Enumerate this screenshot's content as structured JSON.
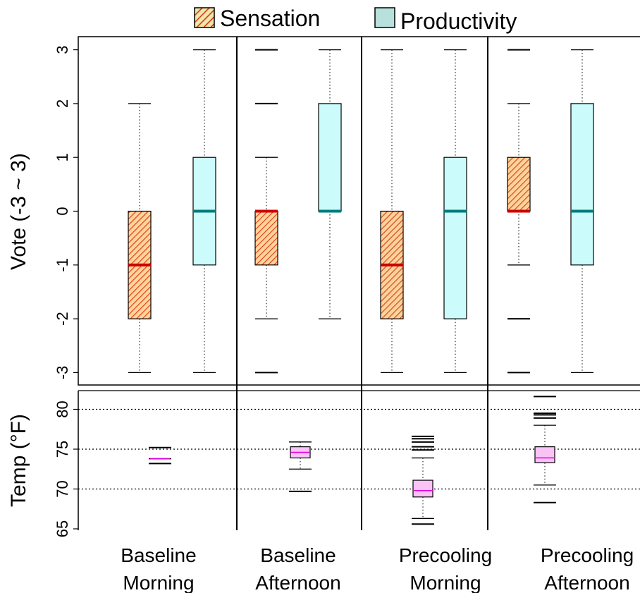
{
  "legend": {
    "items": [
      {
        "label": "Sensation",
        "style": "hatch",
        "fill": "#f0e7ad",
        "stroke": "#d63a16"
      },
      {
        "label": "Productivity",
        "style": "solid",
        "fill": "#b8e0dc",
        "stroke": "#000000"
      }
    ]
  },
  "colors": {
    "sensation_fill": "#ffd39a",
    "sensation_hatch": "#d63a16",
    "sensation_median": "#cc0000",
    "productivity_fill": "#ccfbfb",
    "productivity_median": "#007b7b",
    "temp_fill": "#f9c3f6",
    "temp_median": "#e000e0"
  },
  "chart_data": [
    {
      "type": "box",
      "ylabel": "Vote (-3 ~ 3)",
      "ylim": [
        -3.2,
        3.3
      ],
      "yticks": [
        "-3",
        "-2",
        "-1",
        "0",
        "1",
        "2",
        "3"
      ],
      "categories": [
        "Baseline Morning",
        "Baseline Afternoon",
        "Precooling Morning",
        "Precooling Afternoon"
      ],
      "category_labels": [
        {
          "line1": "Baseline",
          "line2": "Morning"
        },
        {
          "line1": "Baseline",
          "line2": "Afternoon"
        },
        {
          "line1": "Precooling",
          "line2": "Morning"
        },
        {
          "line1": "Precooling",
          "line2": "Afternoon"
        }
      ],
      "series": [
        {
          "name": "Sensation",
          "boxes": [
            {
              "whisker_low": -3,
              "q1": -2,
              "median": -1,
              "q3": 0,
              "whisker_high": 2,
              "outliers": []
            },
            {
              "whisker_low": -2,
              "q1": -1,
              "median": 0,
              "q3": 0,
              "whisker_high": 1,
              "outliers": [
                -3,
                2,
                3
              ]
            },
            {
              "whisker_low": -3,
              "q1": -2,
              "median": -1,
              "q3": 0,
              "whisker_high": 3,
              "outliers": []
            },
            {
              "whisker_low": -1,
              "q1": 0,
              "median": 0,
              "q3": 1,
              "whisker_high": 2,
              "outliers": [
                -3,
                -2,
                3
              ]
            }
          ]
        },
        {
          "name": "Productivity",
          "boxes": [
            {
              "whisker_low": -3,
              "q1": -1,
              "median": 0,
              "q3": 1,
              "whisker_high": 3,
              "outliers": []
            },
            {
              "whisker_low": -2,
              "q1": 0,
              "median": 0,
              "q3": 2,
              "whisker_high": 3,
              "outliers": []
            },
            {
              "whisker_low": -3,
              "q1": -2,
              "median": 0,
              "q3": 1,
              "whisker_high": 3,
              "outliers": []
            },
            {
              "whisker_low": -3,
              "q1": -1,
              "median": 0,
              "q3": 2,
              "whisker_high": 3,
              "outliers": []
            }
          ]
        }
      ]
    },
    {
      "type": "box",
      "ylabel": "Temp (°F)",
      "ylim": [
        64.8,
        82.5
      ],
      "yticks": [
        "65",
        "70",
        "75",
        "80"
      ],
      "gridlines": [
        70,
        75,
        80
      ],
      "categories": [
        "Baseline Morning",
        "Baseline Afternoon",
        "Precooling Morning",
        "Precooling Afternoon"
      ],
      "series": [
        {
          "name": "Temp",
          "boxes": [
            {
              "whisker_low": 73.8,
              "q1": 73.8,
              "median": 73.8,
              "q3": 73.8,
              "whisker_high": 73.8,
              "outliers": [
                73.2,
                75.2
              ]
            },
            {
              "whisker_low": 72.5,
              "q1": 73.9,
              "median": 74.6,
              "q3": 75.3,
              "whisker_high": 75.9,
              "outliers": [
                69.7
              ]
            },
            {
              "whisker_low": 66.3,
              "q1": 69.0,
              "median": 69.8,
              "q3": 71.1,
              "whisker_high": 73.9,
              "outliers": [
                65.6,
                74.9,
                75.3,
                75.9,
                76.3,
                76.6
              ]
            },
            {
              "whisker_low": 70.5,
              "q1": 73.3,
              "median": 73.9,
              "q3": 75.3,
              "whisker_high": 78.0,
              "outliers": [
                68.3,
                78.9,
                79.3,
                79.5,
                81.6
              ]
            }
          ]
        }
      ]
    }
  ]
}
